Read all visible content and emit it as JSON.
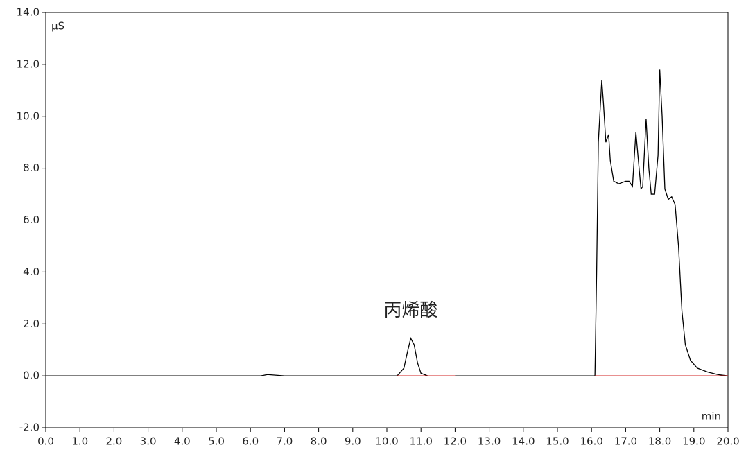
{
  "chart_data": {
    "type": "line",
    "y_label": "μS",
    "x_label": "min",
    "annotations": [
      {
        "text": "丙烯酸",
        "x": 10.7,
        "y": 2.5
      }
    ],
    "xlim": [
      0,
      20
    ],
    "ylim": [
      -2,
      14
    ],
    "xticks": [
      {
        "value": 0,
        "label": "0.0"
      },
      {
        "value": 1,
        "label": "1.0"
      },
      {
        "value": 2,
        "label": "2.0"
      },
      {
        "value": 3,
        "label": "3.0"
      },
      {
        "value": 4,
        "label": "4.0"
      },
      {
        "value": 5,
        "label": "5.0"
      },
      {
        "value": 6,
        "label": "6.0"
      },
      {
        "value": 7,
        "label": "7.0"
      },
      {
        "value": 8,
        "label": "8.0"
      },
      {
        "value": 9,
        "label": "9.0"
      },
      {
        "value": 10,
        "label": "10.0"
      },
      {
        "value": 11,
        "label": "11.0"
      },
      {
        "value": 12,
        "label": "12.0"
      },
      {
        "value": 13,
        "label": "13.0"
      },
      {
        "value": 14,
        "label": "14.0"
      },
      {
        "value": 15,
        "label": "15.0"
      },
      {
        "value": 16,
        "label": "16.0"
      },
      {
        "value": 17,
        "label": "17.0"
      },
      {
        "value": 18,
        "label": "18.0"
      },
      {
        "value": 19,
        "label": "19.0"
      },
      {
        "value": 20,
        "label": "20.0"
      }
    ],
    "yticks": [
      {
        "value": -2,
        "label": "-2.0"
      },
      {
        "value": 0,
        "label": "0.0"
      },
      {
        "value": 2,
        "label": "2.0"
      },
      {
        "value": 4,
        "label": "4.0"
      },
      {
        "value": 6,
        "label": "6.0"
      },
      {
        "value": 8,
        "label": "8.0"
      },
      {
        "value": 10,
        "label": "10.0"
      },
      {
        "value": 12,
        "label": "12.0"
      },
      {
        "value": 14,
        "label": "14.0"
      }
    ],
    "series": [
      {
        "color": "#000000",
        "x": [
          0,
          6.3,
          6.5,
          6.8,
          7,
          10.3,
          10.5,
          10.6,
          10.7,
          10.8,
          10.9,
          11.0,
          11.2,
          16.1,
          16.15,
          16.2,
          16.3,
          16.35,
          16.42,
          16.5,
          16.55,
          16.65,
          16.8,
          17.0,
          17.1,
          17.2,
          17.3,
          17.38,
          17.45,
          17.5,
          17.6,
          17.68,
          17.75,
          17.85,
          17.95,
          18.0,
          18.07,
          18.15,
          18.25,
          18.35,
          18.45,
          18.55,
          18.65,
          18.75,
          18.9,
          19.1,
          19.4,
          19.7,
          20
        ],
        "values": [
          0,
          0,
          0.05,
          0.02,
          0,
          0,
          0.3,
          0.9,
          1.45,
          1.2,
          0.5,
          0.1,
          0,
          0,
          4.0,
          9.0,
          11.4,
          10.5,
          9.0,
          9.3,
          8.3,
          7.5,
          7.4,
          7.5,
          7.5,
          7.3,
          9.4,
          8.2,
          7.2,
          7.3,
          9.9,
          8.0,
          7.0,
          7.0,
          8.5,
          11.8,
          10.0,
          7.2,
          6.8,
          6.9,
          6.6,
          5.0,
          2.5,
          1.2,
          0.6,
          0.3,
          0.15,
          0.05,
          0
        ]
      },
      {
        "color": "#d02020",
        "x": [
          10.3,
          12.0
        ],
        "values": [
          0,
          0
        ]
      },
      {
        "color": "#d02020",
        "x": [
          16.1,
          20
        ],
        "values": [
          0,
          0
        ]
      }
    ]
  }
}
